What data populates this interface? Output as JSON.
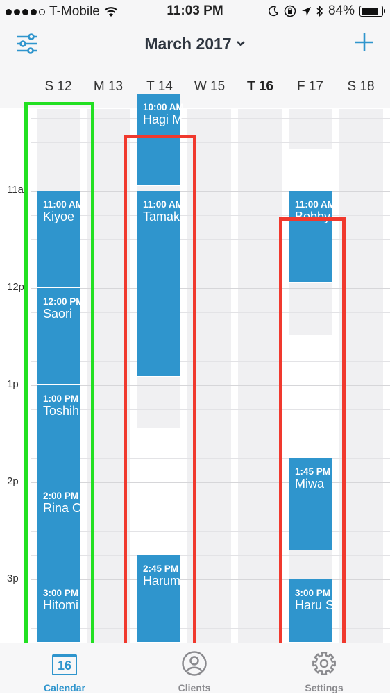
{
  "status_bar": {
    "carrier": "T-Mobile",
    "time": "11:03 PM",
    "battery": "84%",
    "battery_level": 0.84,
    "signal_bars": 4
  },
  "nav": {
    "title": "March 2017",
    "filter_icon": "sliders-icon",
    "add_icon": "plus-icon"
  },
  "days": [
    {
      "label": "S 12",
      "today": false
    },
    {
      "label": "M 13",
      "today": false
    },
    {
      "label": "T 14",
      "today": false
    },
    {
      "label": "W 15",
      "today": false
    },
    {
      "label": "T 16",
      "today": true
    },
    {
      "label": "F 17",
      "today": false
    },
    {
      "label": "S 18",
      "today": false
    }
  ],
  "hours": [
    "11a",
    "12p",
    "1p",
    "2p",
    "3p"
  ],
  "appointments": [
    {
      "day": "S 12",
      "time": "11:00 AM",
      "client": "Kiyoe"
    },
    {
      "day": "S 12",
      "time": "12:00 PM",
      "client": "Saori"
    },
    {
      "day": "S 12",
      "time": "1:00 PM",
      "client": "Toshih"
    },
    {
      "day": "S 12",
      "time": "2:00 PM",
      "client": "Rina O"
    },
    {
      "day": "S 12",
      "time": "3:00 PM",
      "client": "Hitomi"
    },
    {
      "day": "T 14",
      "time": "10:00 AM",
      "client": "Hagi M"
    },
    {
      "day": "T 14",
      "time": "11:00 AM",
      "client": "Tamak"
    },
    {
      "day": "T 14",
      "time": "2:45 PM",
      "client": "Harum"
    },
    {
      "day": "F 17",
      "time": "11:00 AM",
      "client": "Bobby"
    },
    {
      "day": "F 17",
      "time": "1:45 PM",
      "client": "Miwa"
    },
    {
      "day": "F 17",
      "time": "3:00 PM",
      "client": "Haru S"
    }
  ],
  "tabs": [
    {
      "label": "Calendar",
      "icon": "calendar-icon",
      "badge": "16",
      "active": true
    },
    {
      "label": "Clients",
      "icon": "person-icon",
      "active": false
    },
    {
      "label": "Settings",
      "icon": "gear-icon",
      "active": false
    }
  ],
  "colors": {
    "accent": "#2f95cd",
    "highlight_green": "#22e022",
    "highlight_red": "#f0392e"
  }
}
